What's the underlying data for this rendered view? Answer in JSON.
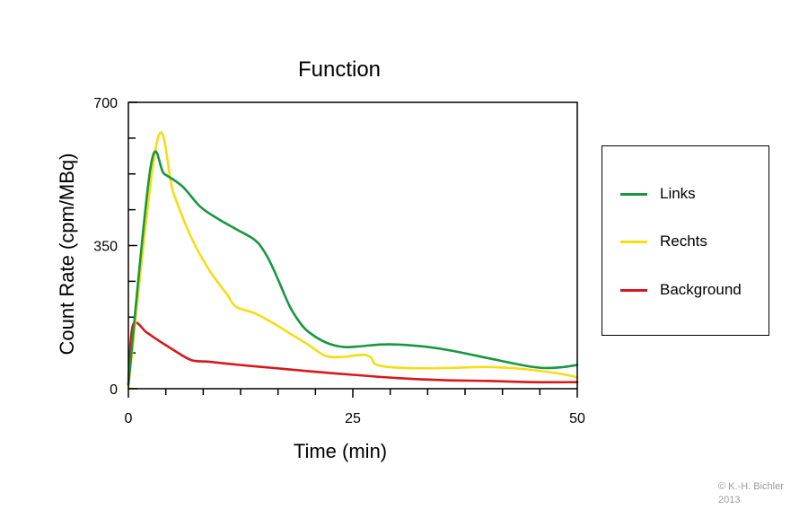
{
  "chart_data": {
    "type": "line",
    "title": "Function",
    "xlabel": "Time (min)",
    "ylabel": "Count Rate (cpm/MBq)",
    "xlim": [
      0,
      50
    ],
    "ylim": [
      0,
      700
    ],
    "x_ticks": [
      0,
      25,
      50
    ],
    "y_ticks": [
      0,
      350,
      700
    ],
    "grid": false,
    "legend_position": "right",
    "series": [
      {
        "name": "Links",
        "color": "#1a9641",
        "points": [
          [
            0,
            10
          ],
          [
            2.5,
            545
          ],
          [
            4,
            525
          ],
          [
            6,
            495
          ],
          [
            8,
            445
          ],
          [
            10,
            415
          ],
          [
            12,
            390
          ],
          [
            14,
            365
          ],
          [
            15,
            340
          ],
          [
            16,
            300
          ],
          [
            17,
            250
          ],
          [
            18,
            200
          ],
          [
            19,
            165
          ],
          [
            20,
            140
          ],
          [
            22,
            113
          ],
          [
            24,
            102
          ],
          [
            26,
            104
          ],
          [
            28,
            108
          ],
          [
            30,
            108
          ],
          [
            33,
            103
          ],
          [
            36,
            93
          ],
          [
            40,
            75
          ],
          [
            44,
            57
          ],
          [
            46,
            51
          ],
          [
            48,
            52
          ],
          [
            50,
            58
          ]
        ]
      },
      {
        "name": "Rechts",
        "color": "#f5dd14",
        "points": [
          [
            0,
            5
          ],
          [
            3.2,
            605
          ],
          [
            5,
            480
          ],
          [
            7,
            370
          ],
          [
            9,
            290
          ],
          [
            11,
            230
          ],
          [
            12,
            200
          ],
          [
            14,
            185
          ],
          [
            16,
            162
          ],
          [
            18,
            135
          ],
          [
            20,
            108
          ],
          [
            22,
            80
          ],
          [
            24,
            78
          ],
          [
            26,
            83
          ],
          [
            27,
            77
          ],
          [
            27.5,
            60
          ],
          [
            29,
            53
          ],
          [
            32,
            50
          ],
          [
            36,
            51
          ],
          [
            40,
            53
          ],
          [
            44,
            48
          ],
          [
            48,
            37
          ],
          [
            50,
            28
          ]
        ]
      },
      {
        "name": "Background",
        "color": "#d7191c",
        "points": [
          [
            0,
            10
          ],
          [
            0.5,
            155
          ],
          [
            2,
            138
          ],
          [
            3,
            123
          ],
          [
            5,
            95
          ],
          [
            7,
            70
          ],
          [
            9,
            66
          ],
          [
            12,
            59
          ],
          [
            16,
            51
          ],
          [
            20,
            43
          ],
          [
            25,
            34
          ],
          [
            30,
            26
          ],
          [
            35,
            21
          ],
          [
            40,
            19
          ],
          [
            45,
            16
          ],
          [
            50,
            16
          ]
        ]
      }
    ]
  },
  "copyright": {
    "line1": "© K.-H. Bichler",
    "line2": "2013"
  }
}
